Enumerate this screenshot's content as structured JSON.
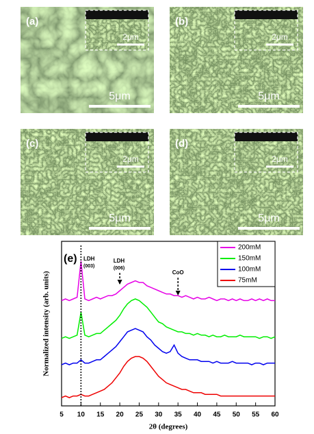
{
  "panels": [
    {
      "label": "(a)",
      "scale": "5μm",
      "inset_scale": "2μm"
    },
    {
      "label": "(b)",
      "scale": "5μm",
      "inset_scale": "2μm"
    },
    {
      "label": "(c)",
      "scale": "5μm",
      "inset_scale": "2μm"
    },
    {
      "label": "(d)",
      "scale": "5μm",
      "inset_scale": "2μm"
    }
  ],
  "chart_data": {
    "type": "line",
    "panel_label": "(e)",
    "xlabel": "2θ (degrees)",
    "ylabel": "Normalized intensity (arb. units)",
    "x": [
      5,
      6,
      7,
      8,
      9,
      10,
      11,
      12,
      13,
      14,
      15,
      16,
      17,
      18,
      19,
      20,
      21,
      22,
      23,
      24,
      25,
      26,
      27,
      28,
      29,
      30,
      31,
      32,
      33,
      34,
      35,
      36,
      37,
      38,
      39,
      40,
      41,
      42,
      43,
      44,
      45,
      46,
      47,
      48,
      49,
      50,
      51,
      52,
      53,
      54,
      55,
      56,
      57,
      58,
      59,
      60
    ],
    "xlim": [
      5,
      60
    ],
    "xticks": [
      5,
      10,
      15,
      20,
      25,
      30,
      35,
      40,
      45,
      50,
      55,
      60
    ],
    "ylim": [
      0,
      100
    ],
    "legend": "upper right",
    "series": [
      {
        "name": "200mM",
        "color": "#e600e6",
        "values": [
          64,
          65,
          64,
          65,
          66,
          88,
          65,
          64,
          65,
          66,
          65,
          66,
          67,
          67,
          68,
          70,
          72,
          74,
          75,
          76,
          75,
          75,
          73,
          72,
          71,
          70,
          69,
          68,
          68,
          67,
          67,
          66,
          67,
          66,
          65,
          66,
          65,
          65,
          66,
          65,
          64,
          65,
          65,
          64,
          65,
          64,
          65,
          64,
          64,
          65,
          64,
          65,
          64,
          65,
          64,
          64
        ]
      },
      {
        "name": "150mM",
        "color": "#00ee00",
        "values": [
          41,
          42,
          41,
          42,
          43,
          57,
          43,
          42,
          43,
          44,
          44,
          46,
          48,
          50,
          52,
          55,
          59,
          62,
          64,
          65,
          64,
          62,
          60,
          57,
          54,
          51,
          50,
          48,
          47,
          46,
          45,
          45,
          44,
          44,
          43,
          44,
          43,
          43,
          42,
          43,
          42,
          42,
          43,
          42,
          42,
          42,
          43,
          42,
          42,
          42,
          42,
          41,
          42,
          42,
          41,
          42
        ]
      },
      {
        "name": "100mM",
        "color": "#0000ee",
        "values": [
          25,
          26,
          25,
          26,
          26,
          28,
          26,
          26,
          27,
          28,
          28,
          30,
          32,
          34,
          36,
          39,
          42,
          45,
          46,
          47,
          46,
          45,
          42,
          40,
          37,
          35,
          33,
          32,
          33,
          37,
          32,
          30,
          29,
          28,
          28,
          28,
          27,
          27,
          27,
          26,
          27,
          26,
          26,
          26,
          27,
          26,
          26,
          26,
          26,
          25,
          26,
          26,
          25,
          26,
          26,
          26
        ]
      },
      {
        "name": "75mM",
        "color": "#ee0000",
        "values": [
          5,
          6,
          5,
          6,
          6,
          7,
          6,
          6,
          7,
          8,
          9,
          10,
          12,
          14,
          17,
          20,
          24,
          27,
          29,
          30,
          30,
          29,
          27,
          24,
          21,
          18,
          16,
          14,
          13,
          12,
          11,
          10,
          10,
          9,
          8,
          8,
          8,
          7,
          7,
          7,
          7,
          6,
          6,
          6,
          6,
          6,
          6,
          6,
          6,
          6,
          6,
          6,
          6,
          6,
          6,
          6
        ]
      }
    ],
    "annotations": [
      {
        "label": "LDH",
        "sub": "(003)",
        "x": 10
      },
      {
        "label": "LDH",
        "sub": "(006)",
        "x": 20
      },
      {
        "label": "CoO",
        "x": 35
      }
    ]
  }
}
